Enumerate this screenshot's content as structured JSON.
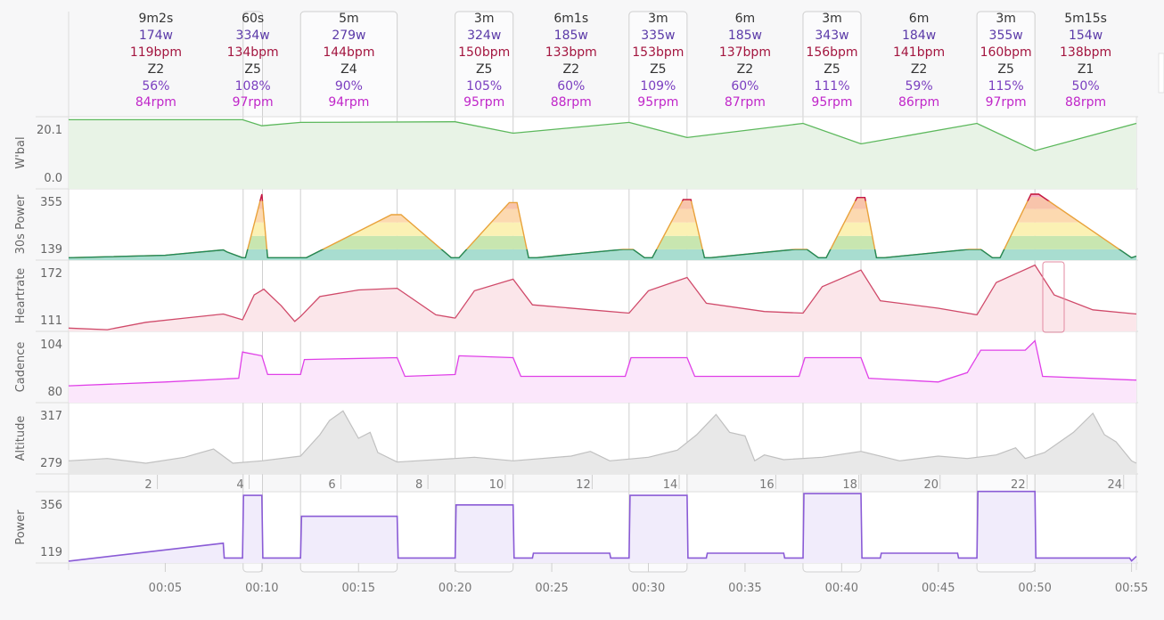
{
  "segments": [
    {
      "duration": "9m2s",
      "power": "174w",
      "hr": "119bpm",
      "zone": "Z2",
      "pct": "56%",
      "cad": "84rpm",
      "start_min": 0,
      "end_min": 9.03,
      "interval": false
    },
    {
      "duration": "60s",
      "power": "334w",
      "hr": "134bpm",
      "zone": "Z5",
      "pct": "108%",
      "cad": "97rpm",
      "start_min": 9.03,
      "end_min": 10.03,
      "interval": true
    },
    {
      "duration": "5m",
      "power": "279w",
      "hr": "144bpm",
      "zone": "Z4",
      "pct": "90%",
      "cad": "94rpm",
      "start_min": 12.0,
      "end_min": 17.0,
      "interval": true
    },
    {
      "duration": "3m",
      "power": "324w",
      "hr": "150bpm",
      "zone": "Z5",
      "pct": "105%",
      "cad": "95rpm",
      "start_min": 20.0,
      "end_min": 23.0,
      "interval": true
    },
    {
      "duration": "6m1s",
      "power": "185w",
      "hr": "133bpm",
      "zone": "Z2",
      "pct": "60%",
      "cad": "88rpm",
      "start_min": 23.0,
      "end_min": 29.0,
      "interval": false
    },
    {
      "duration": "3m",
      "power": "335w",
      "hr": "153bpm",
      "zone": "Z5",
      "pct": "109%",
      "cad": "95rpm",
      "start_min": 29.0,
      "end_min": 32.0,
      "interval": true
    },
    {
      "duration": "6m",
      "power": "185w",
      "hr": "137bpm",
      "zone": "Z2",
      "pct": "60%",
      "cad": "87rpm",
      "start_min": 32.0,
      "end_min": 38.0,
      "interval": false
    },
    {
      "duration": "3m",
      "power": "343w",
      "hr": "156bpm",
      "zone": "Z5",
      "pct": "111%",
      "cad": "95rpm",
      "start_min": 38.0,
      "end_min": 41.0,
      "interval": true
    },
    {
      "duration": "6m",
      "power": "184w",
      "hr": "141bpm",
      "zone": "Z2",
      "pct": "59%",
      "cad": "86rpm",
      "start_min": 41.0,
      "end_min": 47.0,
      "interval": false
    },
    {
      "duration": "3m",
      "power": "355w",
      "hr": "160bpm",
      "zone": "Z5",
      "pct": "115%",
      "cad": "97rpm",
      "start_min": 47.0,
      "end_min": 50.0,
      "interval": true
    },
    {
      "duration": "5m15s",
      "power": "154w",
      "hr": "138bpm",
      "zone": "Z1",
      "pct": "50%",
      "cad": "88rpm",
      "start_min": 50.0,
      "end_min": 55.25,
      "interval": false
    }
  ],
  "colors": {
    "duration": "#333333",
    "power": "#5b3aa8",
    "hr": "#a3153f",
    "zone": "#333333",
    "pct": "#7b3fc0",
    "cad": "#c026c9",
    "wbal_line": "#5cb85c",
    "wbal_fill": "#e8f3e6",
    "hr_line": "#d04a6a",
    "hr_fill": "#fbe6ea",
    "cad_line": "#e040e8",
    "cad_fill": "#fbe7fb",
    "alt_line": "#c0c0c0",
    "alt_fill": "#e8e8e8",
    "power_line": "#8a5bd6",
    "power_fill": "#f1ecfb",
    "pow30_line": "#1f8a5b",
    "grid": "#dddddd"
  },
  "chart_data": [
    {
      "type": "area",
      "name": "wbal",
      "title": "W'bal",
      "ylabels": [
        "20.1",
        "0.0"
      ],
      "ylim": [
        0,
        21.5
      ],
      "x": [
        0,
        9,
        10,
        12,
        20,
        23,
        29,
        32,
        38,
        41,
        47,
        50,
        55.25
      ],
      "y": [
        20.6,
        20.6,
        18.8,
        19.8,
        20.0,
        16.6,
        19.8,
        15.3,
        19.5,
        13.4,
        19.5,
        11.4,
        19.5
      ]
    },
    {
      "type": "area",
      "name": "power30",
      "title": "30s Power",
      "ylabels": [
        "355",
        "139"
      ],
      "ylim": [
        110,
        375
      ],
      "x": [
        0,
        5,
        8,
        8.2,
        9,
        9.15,
        10,
        10.3,
        11.7,
        12.3,
        16.7,
        17.2,
        19.8,
        20.2,
        22.8,
        23.2,
        23.8,
        24.2,
        28.7,
        29.2,
        29.8,
        30.2,
        31.8,
        32.2,
        32.9,
        33.2,
        37.6,
        38.2,
        38.8,
        39.2,
        40.8,
        41.2,
        41.8,
        42.2,
        46.6,
        47.2,
        47.8,
        48.2,
        49.8,
        50.2,
        55,
        55.25
      ],
      "y": [
        119,
        128,
        148,
        140,
        119,
        119,
        355,
        119,
        119,
        119,
        279,
        279,
        119,
        119,
        324,
        324,
        119,
        119,
        150,
        150,
        119,
        119,
        335,
        335,
        119,
        119,
        150,
        150,
        119,
        119,
        343,
        343,
        119,
        119,
        150,
        150,
        119,
        119,
        355,
        355,
        119,
        125
      ]
    },
    {
      "type": "area",
      "name": "heartrate",
      "title": "Heartrate",
      "ylabels": [
        "172",
        "111"
      ],
      "ylim": [
        96,
        182
      ],
      "x": [
        0,
        2,
        4,
        6,
        8,
        9,
        9.6,
        10.1,
        11,
        11.7,
        12,
        13,
        15,
        17,
        19,
        20,
        21,
        23,
        24,
        27,
        29,
        30,
        32,
        33,
        36,
        38,
        39,
        41,
        42,
        45,
        47,
        48,
        50,
        51,
        53,
        55.25
      ],
      "y": [
        100,
        98,
        107,
        112,
        117,
        110,
        140,
        147,
        127,
        108,
        114,
        138,
        146,
        148,
        116,
        112,
        145,
        159,
        128,
        122,
        118,
        145,
        161,
        130,
        120,
        118,
        150,
        170,
        133,
        124,
        116,
        155,
        176,
        140,
        122,
        117
      ]
    },
    {
      "type": "line",
      "name": "cadence",
      "title": "Cadence",
      "ylabels": [
        "104",
        "80"
      ],
      "ylim": [
        72,
        110
      ],
      "x": [
        0,
        5,
        8.8,
        9,
        10,
        10.3,
        12,
        12.2,
        17,
        17.4,
        20,
        20.2,
        23,
        23.4,
        28.8,
        29.1,
        32,
        32.4,
        37.8,
        38.1,
        41,
        41.4,
        45,
        46.5,
        47.2,
        49.5,
        50,
        50.4,
        55.25
      ],
      "y": [
        81,
        83,
        85,
        99,
        97,
        87,
        87,
        95,
        96,
        86,
        87,
        97,
        96,
        86,
        86,
        96,
        96,
        86,
        86,
        96,
        96,
        85,
        83,
        88,
        100,
        100,
        105,
        86,
        84
      ]
    },
    {
      "type": "area",
      "name": "altitude",
      "title": "Altitude",
      "ylabels": [
        "317",
        "279"
      ],
      "ylim": [
        265,
        325
      ],
      "x": [
        0,
        2,
        4,
        6,
        7.5,
        8.5,
        10,
        12,
        13,
        13.5,
        14.2,
        15,
        15.6,
        16,
        17,
        18,
        21,
        23,
        26,
        27,
        28,
        30,
        31.5,
        32.5,
        33.5,
        34.2,
        35,
        35.5,
        36,
        37,
        39,
        41,
        43,
        45,
        46.5,
        48,
        49,
        49.5,
        50.5,
        52,
        53,
        53.6,
        54.2,
        55,
        55.25
      ],
      "y": [
        276,
        278,
        274,
        279,
        286,
        274,
        276,
        280,
        298,
        310,
        318,
        295,
        300,
        283,
        275,
        276,
        279,
        276,
        280,
        284,
        276,
        279,
        285,
        298,
        315,
        300,
        297,
        276,
        281,
        277,
        279,
        284,
        276,
        280,
        278,
        281,
        287,
        278,
        283,
        300,
        316,
        298,
        292,
        276,
        274
      ]
    },
    {
      "type": "area",
      "name": "power",
      "title": "Power",
      "ylabels": [
        "356",
        "119"
      ],
      "ylim": [
        100,
        370
      ],
      "x": [
        0,
        8,
        8.05,
        9,
        9.05,
        10,
        10.05,
        12,
        12.05,
        17,
        17.05,
        20,
        20.05,
        23,
        23.05,
        24,
        24.05,
        28,
        28.05,
        29,
        29.05,
        32,
        32.05,
        33,
        33.05,
        37,
        37.05,
        38,
        38.05,
        41,
        41.05,
        42,
        42.05,
        46,
        46.05,
        47,
        47.05,
        50,
        50.05,
        54.9,
        55.0,
        55.25
      ],
      "y": [
        107,
        175,
        119,
        119,
        356,
        356,
        119,
        119,
        277,
        277,
        119,
        119,
        320,
        320,
        119,
        119,
        137,
        137,
        119,
        119,
        356,
        356,
        119,
        119,
        137,
        137,
        119,
        119,
        363,
        363,
        119,
        119,
        137,
        137,
        119,
        119,
        371,
        371,
        119,
        119,
        108,
        125
      ]
    }
  ],
  "axes": {
    "mid_ticks": [
      {
        "min": 4.5,
        "label": "2"
      },
      {
        "min": 9.25,
        "label": "4"
      },
      {
        "min": 14,
        "label": "6"
      },
      {
        "min": 18.5,
        "label": "8"
      },
      {
        "min": 22.5,
        "label": "10"
      },
      {
        "min": 27,
        "label": "12"
      },
      {
        "min": 31.5,
        "label": "14"
      },
      {
        "min": 36.5,
        "label": "16"
      },
      {
        "min": 40.8,
        "label": "18"
      },
      {
        "min": 45,
        "label": "20"
      },
      {
        "min": 49.5,
        "label": "22"
      },
      {
        "min": 54.5,
        "label": "24"
      }
    ],
    "time_ticks": [
      {
        "min": 5,
        "label": "00:05"
      },
      {
        "min": 10,
        "label": "00:10"
      },
      {
        "min": 15,
        "label": "00:15"
      },
      {
        "min": 20,
        "label": "00:20"
      },
      {
        "min": 25,
        "label": "00:25"
      },
      {
        "min": 30,
        "label": "00:30"
      },
      {
        "min": 35,
        "label": "00:35"
      },
      {
        "min": 40,
        "label": "00:40"
      },
      {
        "min": 45,
        "label": "00:45"
      },
      {
        "min": 50,
        "label": "00:50"
      },
      {
        "min": 55,
        "label": "00:55"
      }
    ]
  }
}
